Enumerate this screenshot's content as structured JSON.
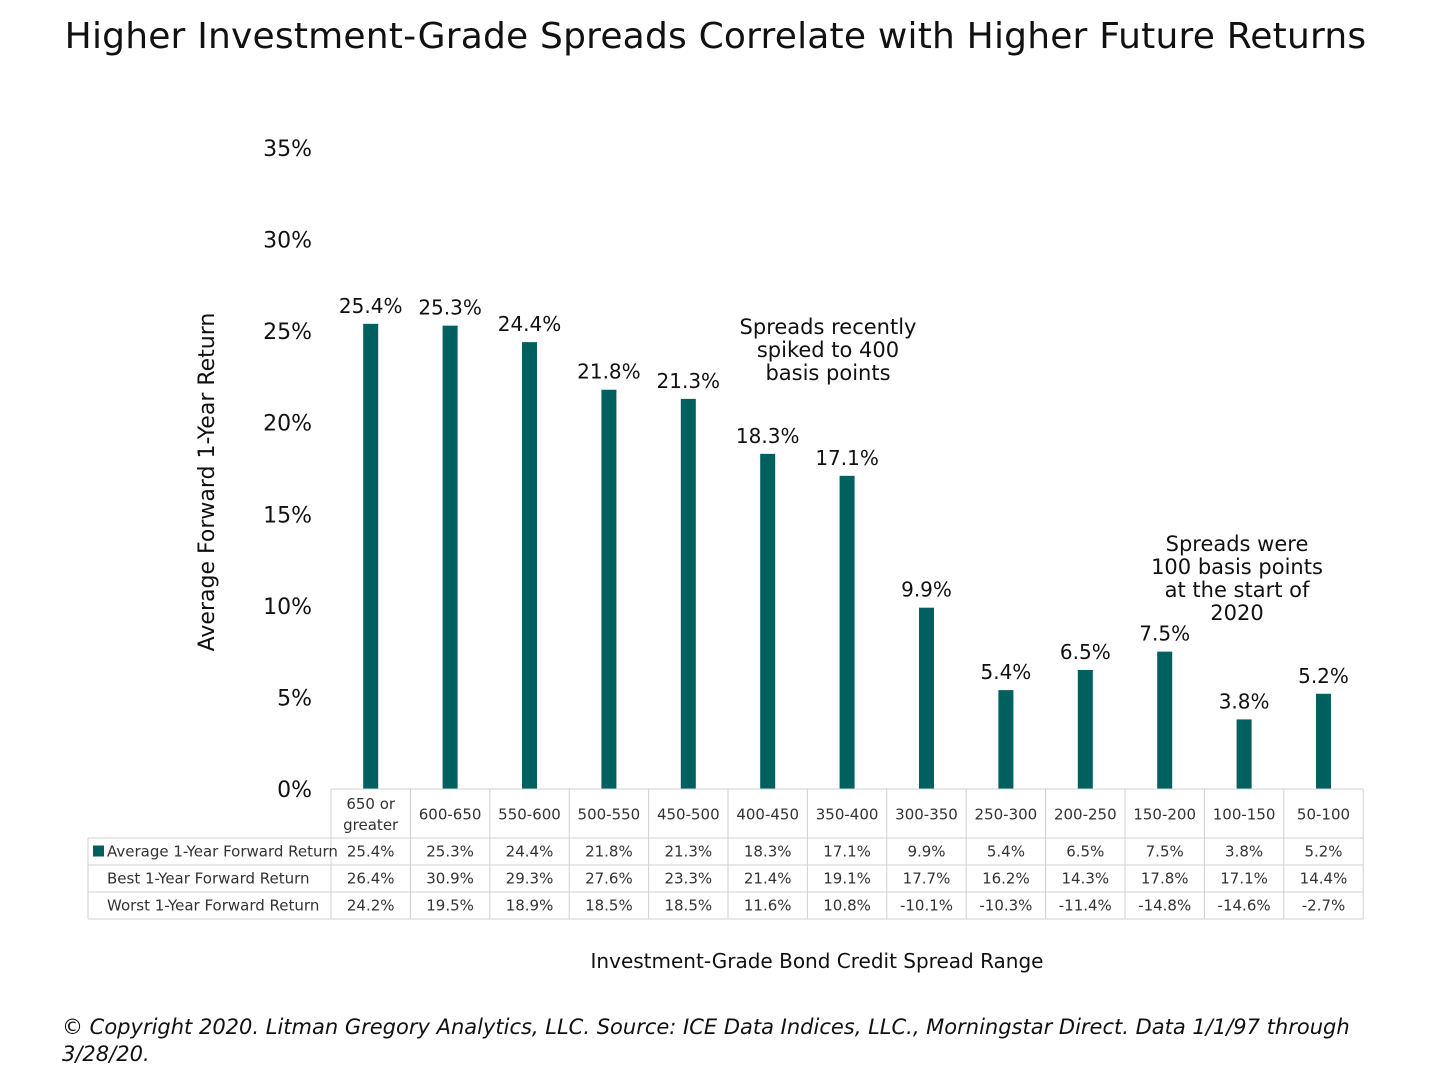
{
  "title": "Higher Investment-Grade Spreads Correlate with Higher Future Returns",
  "footer": "© Copyright 2020. Litman Gregory Analytics, LLC. Source: ICE Data Indices, LLC., Morningstar Direct. Data 1/1/97 through 3/28/20.",
  "colors": {
    "bar": "#005f5f",
    "grid": "#d0d0d0",
    "text": "#111111"
  },
  "chart_data": {
    "type": "bar",
    "title": "Higher Investment-Grade Spreads Correlate with Higher Future Returns",
    "ylabel": "Average Forward 1-Year Return",
    "xlabel": "Investment-Grade Bond Credit Spread Range",
    "ylim": [
      0,
      35
    ],
    "yticks": [
      "0%",
      "5%",
      "10%",
      "15%",
      "20%",
      "25%",
      "30%",
      "35%"
    ],
    "ytick_values": [
      0,
      5,
      10,
      15,
      20,
      25,
      30,
      35
    ],
    "categories": [
      "650 or greater",
      "600-650",
      "550-600",
      "500-550",
      "450-500",
      "400-450",
      "350-400",
      "300-350",
      "250-300",
      "200-250",
      "150-200",
      "100-150",
      "50-100"
    ],
    "category_lines": [
      [
        "650 or",
        "greater"
      ],
      [
        "600-650"
      ],
      [
        "550-600"
      ],
      [
        "500-550"
      ],
      [
        "450-500"
      ],
      [
        "400-450"
      ],
      [
        "350-400"
      ],
      [
        "300-350"
      ],
      [
        "250-300"
      ],
      [
        "200-250"
      ],
      [
        "150-200"
      ],
      [
        "100-150"
      ],
      [
        "50-100"
      ]
    ],
    "series": [
      {
        "name": "Average 1-Year Forward Return",
        "values": [
          25.4,
          25.3,
          24.4,
          21.8,
          21.3,
          18.3,
          17.1,
          9.9,
          5.4,
          6.5,
          7.5,
          3.8,
          5.2
        ]
      }
    ],
    "data_labels": [
      "25.4%",
      "25.3%",
      "24.4%",
      "21.8%",
      "21.3%",
      "18.3%",
      "17.1%",
      "9.9%",
      "5.4%",
      "6.5%",
      "7.5%",
      "3.8%",
      "5.2%"
    ],
    "table": {
      "rows": [
        {
          "label": "Average 1-Year Forward Return",
          "has_legend_key": true,
          "values": [
            "25.4%",
            "25.3%",
            "24.4%",
            "21.8%",
            "21.3%",
            "18.3%",
            "17.1%",
            "9.9%",
            "5.4%",
            "6.5%",
            "7.5%",
            "3.8%",
            "5.2%"
          ]
        },
        {
          "label": "Best 1-Year Forward Return",
          "has_legend_key": false,
          "values": [
            "26.4%",
            "30.9%",
            "29.3%",
            "27.6%",
            "23.3%",
            "21.4%",
            "19.1%",
            "17.7%",
            "16.2%",
            "14.3%",
            "17.8%",
            "17.1%",
            "14.4%"
          ]
        },
        {
          "label": "Worst 1-Year Forward Return",
          "has_legend_key": false,
          "values": [
            "24.2%",
            "19.5%",
            "18.9%",
            "18.5%",
            "18.5%",
            "11.6%",
            "10.8%",
            "-10.1%",
            "-10.3%",
            "-11.4%",
            "-14.8%",
            "-14.6%",
            "-2.7%"
          ]
        }
      ]
    },
    "annotations": [
      {
        "lines": [
          "Spreads recently",
          "spiked to 400",
          "basis points"
        ],
        "near_category": "400-450"
      },
      {
        "lines": [
          "Spreads were",
          "100 basis points",
          "at the start of",
          "2020"
        ],
        "near_category": "100-150"
      }
    ]
  }
}
